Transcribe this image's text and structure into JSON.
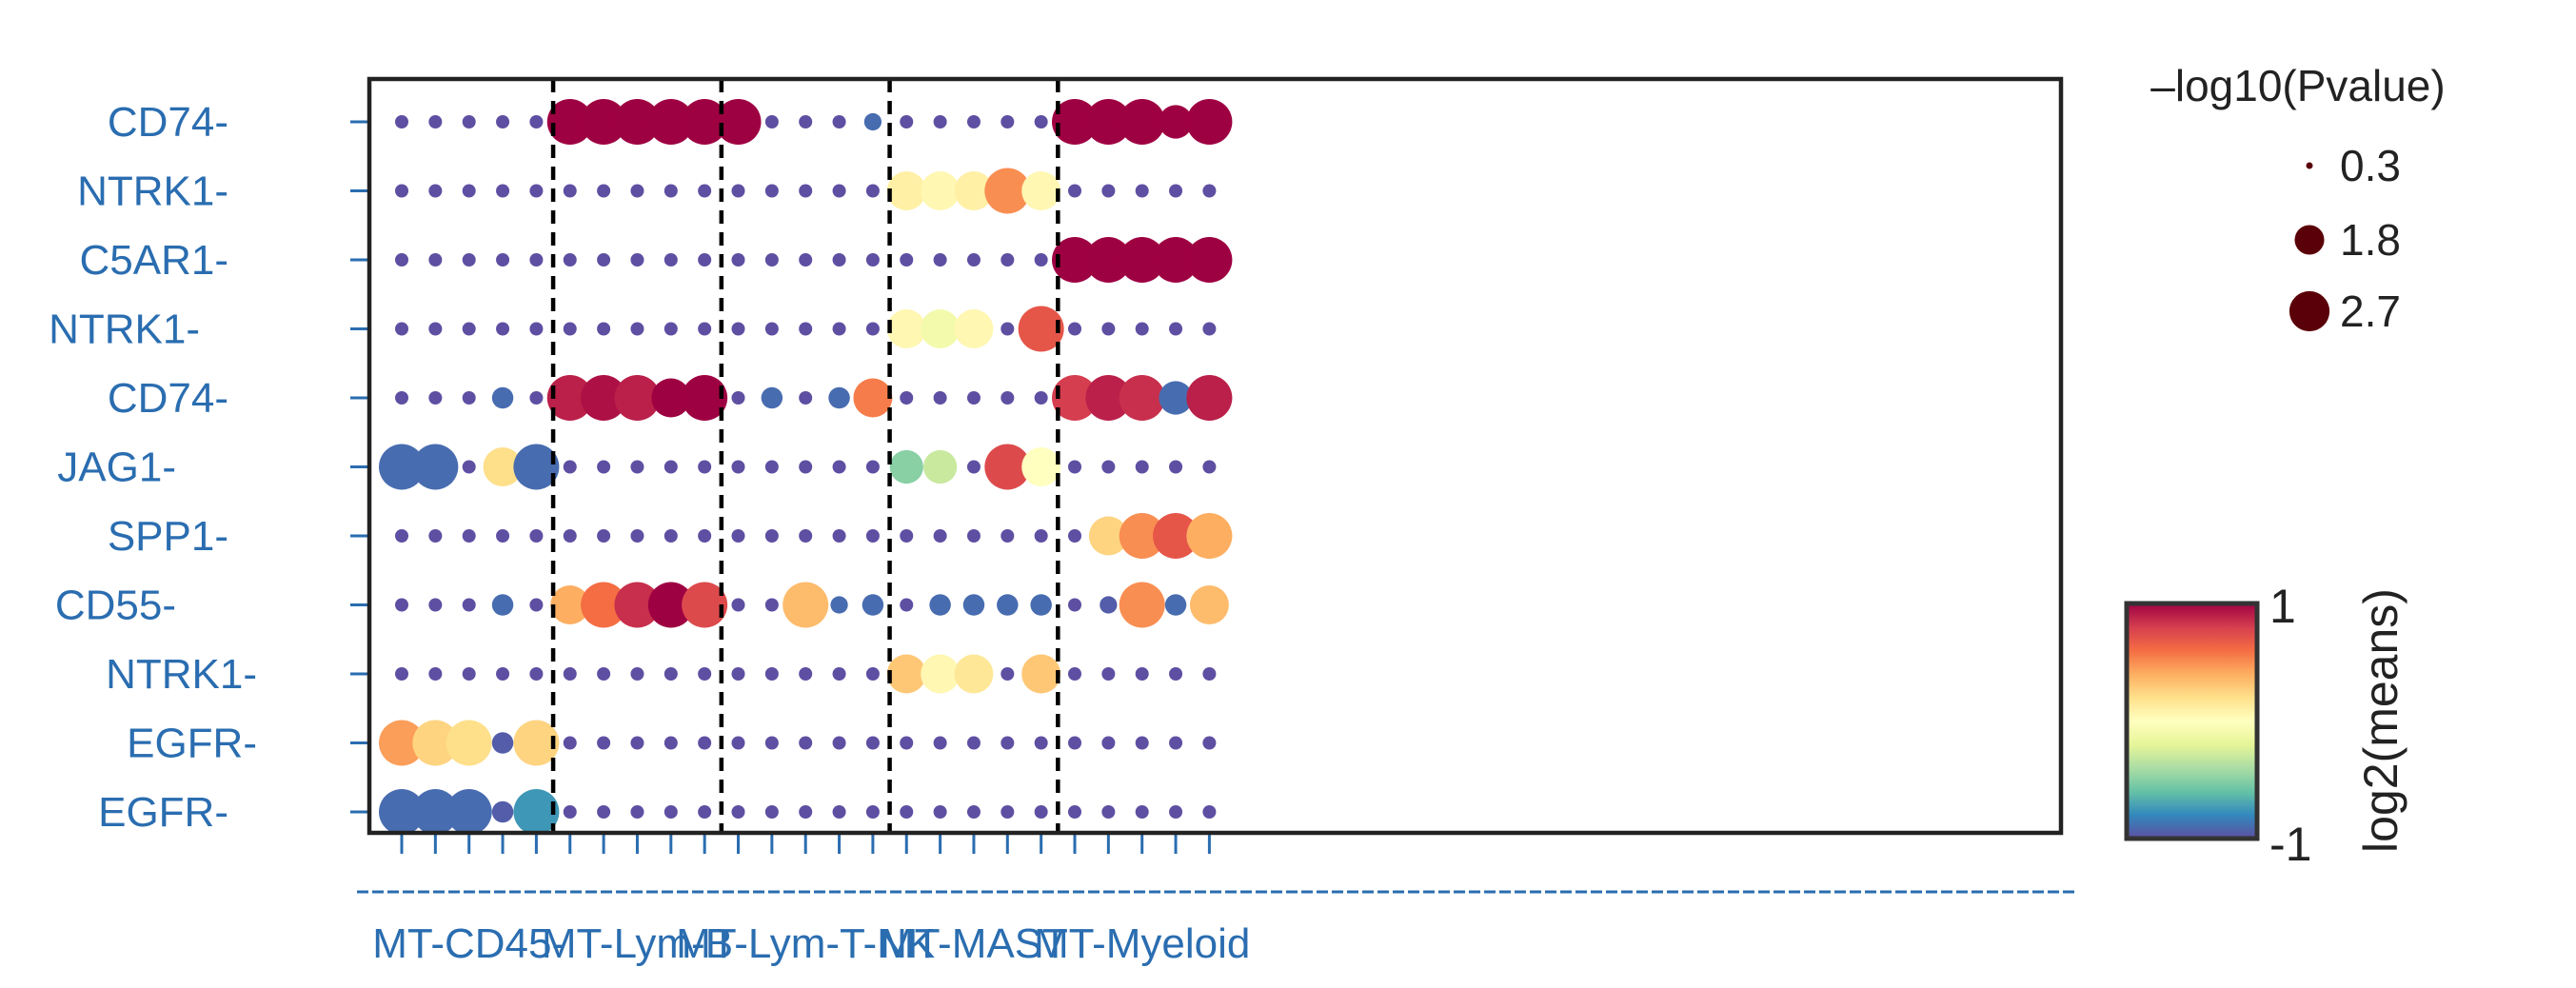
{
  "chart_data": {
    "type": "scatter",
    "title": "",
    "row_labels": [
      "CD74-",
      "NTRK1-",
      "C5AR1-",
      "NTRK1-",
      "CD74-",
      "JAG1-",
      "SPP1-",
      "CD55-",
      "NTRK1-",
      "EGFR-",
      "EGFR-"
    ],
    "groups": [
      "MT-CD45-",
      "MT-Lym-B",
      "MT-Lym-T-NK",
      "MT-MAST",
      "MT-Myeloid"
    ],
    "columns_per_group": 5,
    "size_legend": {
      "title": "–log10(Pvalue)",
      "values": [
        0.3,
        1.8,
        2.7
      ],
      "labels": [
        "0.3",
        "1.8",
        "2.7"
      ]
    },
    "color_legend": {
      "label": "log2(means)",
      "min_label": "-1",
      "max_label": "1",
      "range": [
        -1,
        1
      ],
      "colormap": "Spectral_r"
    },
    "pvalue": [
      [
        0.3,
        0.3,
        0.3,
        0.3,
        0.3,
        2.7,
        2.7,
        2.7,
        2.7,
        2.7,
        2.7,
        0.3,
        0.3,
        0.3,
        0.6,
        0.3,
        0.3,
        0.3,
        0.3,
        0.3,
        2.7,
        2.7,
        2.7,
        1.8,
        2.7
      ],
      [
        0.3,
        0.3,
        0.3,
        0.3,
        0.3,
        0.3,
        0.3,
        0.3,
        0.3,
        0.3,
        0.3,
        0.3,
        0.3,
        0.3,
        0.3,
        2.2,
        2.2,
        2.2,
        2.7,
        2.2,
        0.3,
        0.3,
        0.3,
        0.3,
        0.3
      ],
      [
        0.3,
        0.3,
        0.3,
        0.3,
        0.3,
        0.3,
        0.3,
        0.3,
        0.3,
        0.3,
        0.3,
        0.3,
        0.3,
        0.3,
        0.3,
        0.3,
        0.3,
        0.3,
        0.3,
        0.3,
        2.7,
        2.7,
        2.7,
        2.7,
        2.7
      ],
      [
        0.3,
        0.3,
        0.3,
        0.3,
        0.3,
        0.3,
        0.3,
        0.3,
        0.3,
        0.3,
        0.3,
        0.3,
        0.3,
        0.3,
        0.3,
        2.2,
        2.2,
        2.2,
        0.3,
        2.7,
        0.3,
        0.3,
        0.3,
        0.3,
        0.3
      ],
      [
        0.3,
        0.3,
        0.3,
        0.9,
        0.3,
        2.7,
        2.7,
        2.7,
        2.2,
        2.7,
        0.3,
        0.9,
        0.3,
        0.9,
        2.2,
        0.3,
        0.3,
        0.3,
        0.3,
        0.3,
        2.7,
        2.7,
        2.7,
        1.8,
        2.7
      ],
      [
        2.7,
        2.7,
        0.3,
        2.2,
        2.7,
        0.3,
        0.3,
        0.3,
        0.3,
        0.3,
        0.3,
        0.3,
        0.3,
        0.3,
        0.3,
        1.8,
        1.8,
        0.3,
        2.7,
        2.2,
        0.3,
        0.3,
        0.3,
        0.3,
        0.3
      ],
      [
        0.3,
        0.3,
        0.3,
        0.3,
        0.3,
        0.3,
        0.3,
        0.3,
        0.3,
        0.3,
        0.3,
        0.3,
        0.3,
        0.3,
        0.3,
        0.3,
        0.3,
        0.3,
        0.3,
        0.3,
        0.3,
        2.2,
        2.7,
        2.7,
        2.7
      ],
      [
        0.3,
        0.3,
        0.3,
        0.9,
        0.3,
        2.2,
        2.7,
        2.7,
        2.7,
        2.7,
        0.3,
        0.3,
        2.7,
        0.6,
        0.9,
        0.3,
        0.9,
        0.9,
        0.9,
        0.9,
        0.3,
        0.6,
        2.7,
        0.9,
        2.2
      ],
      [
        0.3,
        0.3,
        0.3,
        0.3,
        0.3,
        0.3,
        0.3,
        0.3,
        0.3,
        0.3,
        0.3,
        0.3,
        0.3,
        0.3,
        0.3,
        2.2,
        2.2,
        2.2,
        0.3,
        2.2,
        0.3,
        0.3,
        0.3,
        0.3,
        0.3
      ],
      [
        2.7,
        2.7,
        2.7,
        0.9,
        2.7,
        0.3,
        0.3,
        0.3,
        0.3,
        0.3,
        0.3,
        0.3,
        0.3,
        0.3,
        0.3,
        0.3,
        0.3,
        0.3,
        0.3,
        0.3,
        0.3,
        0.3,
        0.3,
        0.3,
        0.3
      ],
      [
        2.7,
        2.7,
        2.7,
        0.9,
        2.7,
        0.3,
        0.3,
        0.3,
        0.3,
        0.3,
        0.3,
        0.3,
        0.3,
        0.3,
        0.3,
        0.3,
        0.3,
        0.3,
        0.3,
        0.3,
        0.3,
        0.3,
        0.3,
        0.3,
        0.3
      ]
    ],
    "log2means": [
      [
        -1,
        -1,
        -1,
        -1,
        -1,
        1,
        1,
        1,
        1,
        1,
        1,
        -1,
        -1,
        -1,
        -0.9,
        -1,
        -1,
        -1,
        -1,
        -1,
        1,
        1,
        1,
        1,
        1
      ],
      [
        -1,
        -1,
        -1,
        -1,
        -1,
        -1,
        -1,
        -1,
        -1,
        -1,
        -1,
        -1,
        -1,
        -1,
        -1,
        0.1,
        0.05,
        0.1,
        0.5,
        0.05,
        -1,
        -1,
        -1,
        -1,
        -1
      ],
      [
        -1,
        -1,
        -1,
        -1,
        -1,
        -1,
        -1,
        -1,
        -1,
        -1,
        -1,
        -1,
        -1,
        -1,
        -1,
        -1,
        -1,
        -1,
        -1,
        -1,
        1,
        1,
        1,
        1,
        1
      ],
      [
        -1,
        -1,
        -1,
        -1,
        -1,
        -1,
        -1,
        -1,
        -1,
        -1,
        -1,
        -1,
        -1,
        -1,
        -1,
        0.05,
        -0.1,
        0.05,
        -1,
        0.7,
        -1,
        -1,
        -1,
        -1,
        -1
      ],
      [
        -1,
        -1,
        -1,
        -0.9,
        -1,
        0.9,
        0.95,
        0.9,
        1,
        1,
        -1,
        -0.9,
        -1,
        -0.9,
        0.55,
        -1,
        -1,
        -1,
        -1,
        -1,
        0.8,
        0.9,
        0.85,
        -0.9,
        0.9
      ],
      [
        -0.9,
        -0.9,
        -1,
        0.2,
        -0.9,
        -1,
        -1,
        -1,
        -1,
        -1,
        -1,
        -1,
        -1,
        -1,
        -1,
        -0.5,
        -0.3,
        -1,
        0.75,
        0.0,
        -1,
        -1,
        -1,
        -1,
        -1
      ],
      [
        -1,
        -1,
        -1,
        -1,
        -1,
        -1,
        -1,
        -1,
        -1,
        -1,
        -1,
        -1,
        -1,
        -1,
        -1,
        -1,
        -1,
        -1,
        -1,
        -1,
        -1,
        0.25,
        0.5,
        0.7,
        0.4
      ],
      [
        -1,
        -1,
        -1,
        -0.9,
        -1,
        0.4,
        0.6,
        0.85,
        1,
        0.75,
        -1,
        -1,
        0.35,
        -0.9,
        -0.9,
        -1,
        -0.9,
        -0.9,
        -0.9,
        -0.9,
        -1,
        -0.95,
        0.5,
        -0.9,
        0.35
      ],
      [
        -1,
        -1,
        -1,
        -1,
        -1,
        -1,
        -1,
        -1,
        -1,
        -1,
        -1,
        -1,
        -1,
        -1,
        -1,
        0.3,
        0.05,
        0.15,
        -1,
        0.3,
        -1,
        -1,
        -1,
        -1,
        -1
      ],
      [
        0.45,
        0.25,
        0.2,
        -0.95,
        0.25,
        -1,
        -1,
        -1,
        -1,
        -1,
        -1,
        -1,
        -1,
        -1,
        -1,
        -1,
        -1,
        -1,
        -1,
        -1,
        -1,
        -1,
        -1,
        -1,
        -1
      ],
      [
        -0.9,
        -0.9,
        -0.9,
        -0.95,
        -0.75,
        -1,
        -1,
        -1,
        -1,
        -1,
        -1,
        -1,
        -1,
        -1,
        -1,
        -1,
        -1,
        -1,
        -1,
        -1,
        -1,
        -1,
        -1,
        -1,
        -1
      ]
    ]
  }
}
